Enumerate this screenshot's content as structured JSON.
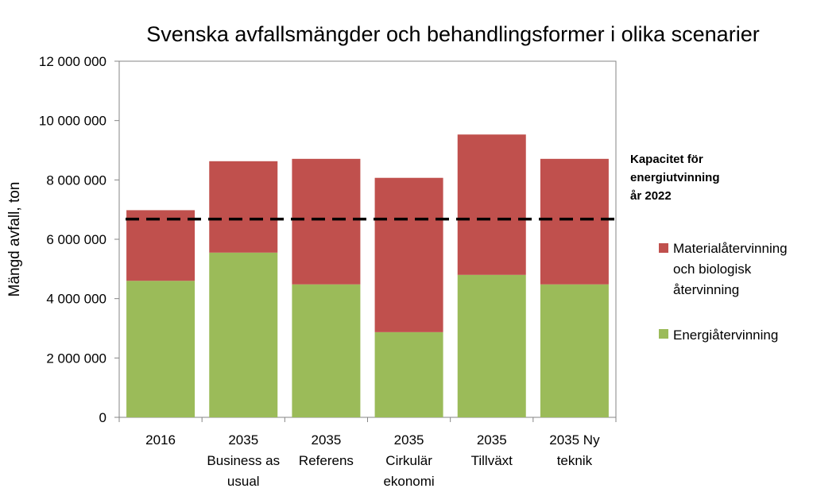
{
  "chart_data": {
    "type": "bar",
    "stacked": true,
    "title": "Svenska avfallsmängder och behandlingsformer i olika scenarier",
    "xlabel": "",
    "ylabel": "Mängd avfall, ton",
    "ylim": [
      0,
      12000000
    ],
    "yticks": [
      0,
      2000000,
      4000000,
      6000000,
      8000000,
      10000000,
      12000000
    ],
    "ytick_labels": [
      "0",
      "2 000 000",
      "4 000 000",
      "6 000 000",
      "8 000 000",
      "10 000 000",
      "12 000 000"
    ],
    "categories": [
      [
        "2016"
      ],
      [
        "2035",
        "Business as",
        "usual"
      ],
      [
        "2035",
        "Referens"
      ],
      [
        "2035",
        "Cirkulär",
        "ekonomi"
      ],
      [
        "2035",
        "Tillväxt"
      ],
      [
        "2035 Ny",
        "teknik"
      ]
    ],
    "series": [
      {
        "name": "Energiåtervinning",
        "color": "#9BBB59",
        "values": [
          4600000,
          5550000,
          4480000,
          2870000,
          4800000,
          4480000
        ]
      },
      {
        "name": "Materialåtervinning och biologisk återvinning",
        "color": "#C0504D",
        "values": [
          2380000,
          3080000,
          4230000,
          5200000,
          4730000,
          4230000
        ]
      }
    ],
    "legend": {
      "placement": "right",
      "entries": [
        {
          "series": 1,
          "lines": [
            "Materialåtervinning",
            "och biologisk",
            "återvinning"
          ]
        },
        {
          "series": 0,
          "lines": [
            "Energiåtervinning"
          ]
        }
      ]
    },
    "reference_line": {
      "value": 6680000,
      "style": "dashed",
      "color": "#000000",
      "label_lines": [
        "Kapacitet för",
        "energiutvinning",
        "år 2022"
      ]
    },
    "grid": false
  }
}
